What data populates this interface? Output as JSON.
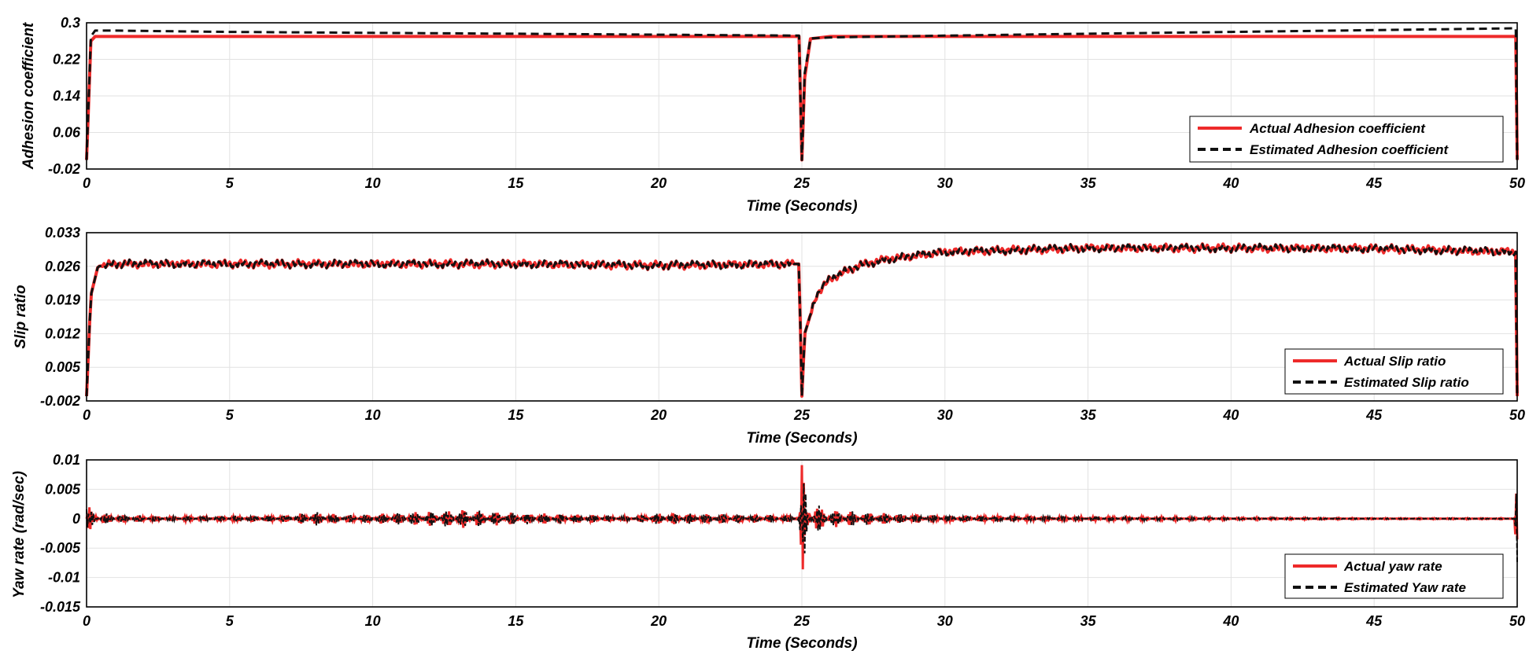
{
  "chart_data": [
    {
      "type": "line",
      "title": "",
      "xlabel": "Time (Seconds)",
      "ylabel": "Adhesion coefficient",
      "xlim": [
        0,
        50
      ],
      "ylim": [
        -0.02,
        0.3
      ],
      "xticks": [
        "0",
        "5",
        "10",
        "15",
        "20",
        "25",
        "30",
        "35",
        "40",
        "45",
        "50"
      ],
      "yticks": [
        "-0.02",
        "0.06",
        "0.14",
        "0.22",
        "0.3"
      ],
      "ytick_values": [
        -0.02,
        0.06,
        0.14,
        0.22,
        0.3
      ],
      "grid": true,
      "legend_position": "bottom-right",
      "series": [
        {
          "name": "Actual Adhesion coefficient",
          "color": "#ee2a2a",
          "style": "solid",
          "x": [
            0,
            0.15,
            0.3,
            1,
            5,
            10,
            15,
            20,
            24.9,
            25.0,
            25.1,
            25.3,
            26,
            30,
            35,
            40,
            45,
            49.95,
            50
          ],
          "y": [
            0.0,
            0.26,
            0.27,
            0.27,
            0.27,
            0.27,
            0.27,
            0.27,
            0.27,
            0.0,
            0.18,
            0.265,
            0.27,
            0.27,
            0.27,
            0.27,
            0.27,
            0.27,
            0.0
          ]
        },
        {
          "name": "Estimated Adhesion coefficient",
          "color": "#111111",
          "style": "dashed",
          "x": [
            0,
            0.15,
            0.3,
            1,
            5,
            10,
            15,
            20,
            24.9,
            25.0,
            25.1,
            25.3,
            26,
            30,
            35,
            40,
            45,
            49.95,
            50
          ],
          "y": [
            0.0,
            0.27,
            0.283,
            0.283,
            0.28,
            0.278,
            0.276,
            0.274,
            0.272,
            0.0,
            0.19,
            0.266,
            0.268,
            0.272,
            0.276,
            0.28,
            0.284,
            0.288,
            0.0
          ]
        }
      ]
    },
    {
      "type": "line",
      "title": "",
      "xlabel": "Time (Seconds)",
      "ylabel": "Slip ratio",
      "xlim": [
        0,
        50
      ],
      "ylim": [
        -0.002,
        0.033
      ],
      "xticks": [
        "0",
        "5",
        "10",
        "15",
        "20",
        "25",
        "30",
        "35",
        "40",
        "45",
        "50"
      ],
      "yticks": [
        "-0.002",
        "0.005",
        "0.012",
        "0.019",
        "0.026",
        "0.033"
      ],
      "ytick_values": [
        -0.002,
        0.005,
        0.012,
        0.019,
        0.026,
        0.033
      ],
      "grid": true,
      "legend_position": "bottom-right",
      "series": [
        {
          "name": "Actual Slip ratio",
          "color": "#ee2a2a",
          "style": "solid",
          "x": [
            0,
            0.15,
            0.4,
            1,
            5,
            10,
            15,
            20,
            24.9,
            25.0,
            25.1,
            25.5,
            26,
            27,
            28,
            30,
            35,
            40,
            45,
            49.95,
            50
          ],
          "y": [
            -0.001,
            0.02,
            0.026,
            0.0265,
            0.0265,
            0.0265,
            0.0265,
            0.0262,
            0.0265,
            -0.001,
            0.012,
            0.02,
            0.0235,
            0.0262,
            0.0275,
            0.029,
            0.0298,
            0.0298,
            0.0297,
            0.029,
            -0.001
          ]
        },
        {
          "name": "Estimated Slip ratio",
          "color": "#111111",
          "style": "dashed",
          "x": [
            0,
            0.15,
            0.4,
            1,
            5,
            10,
            15,
            20,
            24.9,
            25.0,
            25.1,
            25.5,
            26,
            27,
            28,
            30,
            35,
            40,
            45,
            49.95,
            50
          ],
          "y": [
            -0.001,
            0.02,
            0.026,
            0.0265,
            0.0265,
            0.0265,
            0.0265,
            0.0262,
            0.0265,
            -0.001,
            0.012,
            0.02,
            0.0235,
            0.0262,
            0.0275,
            0.029,
            0.0298,
            0.0298,
            0.0297,
            0.029,
            -0.001
          ]
        }
      ]
    },
    {
      "type": "line",
      "title": "",
      "xlabel": "Time (Seconds)",
      "ylabel": "Yaw rate (rad/sec)",
      "xlim": [
        0,
        50
      ],
      "ylim": [
        -0.015,
        0.01
      ],
      "xticks": [
        "0",
        "5",
        "10",
        "15",
        "20",
        "25",
        "30",
        "35",
        "40",
        "45",
        "50"
      ],
      "yticks": [
        "-0.015",
        "-0.01",
        "-0.005",
        "0",
        "0.005",
        "0.01"
      ],
      "ytick_values": [
        -0.015,
        -0.01,
        -0.005,
        0,
        0.005,
        0.01
      ],
      "grid": true,
      "legend_position": "bottom-right",
      "oscillation_envelope": {
        "x": [
          0,
          0.2,
          1,
          3,
          5,
          7,
          8,
          9,
          11,
          13,
          15,
          17,
          19,
          20,
          22,
          24.9,
          25.0,
          25.2,
          26,
          28,
          30,
          35,
          40,
          45,
          49.9,
          50
        ],
        "amplitude": [
          0.003,
          0.0012,
          0.0007,
          0.0004,
          0.0005,
          0.0006,
          0.0012,
          0.0006,
          0.001,
          0.0016,
          0.001,
          0.0008,
          0.0004,
          0.001,
          0.0008,
          0.0006,
          0.01,
          0.003,
          0.0015,
          0.0009,
          0.0006,
          0.0004,
          0.0002,
          0.0001,
          0.0001,
          0.008
        ]
      },
      "series": [
        {
          "name": "Actual yaw rate",
          "color": "#ee2a2a",
          "style": "solid",
          "baseline": 0
        },
        {
          "name": "Estimated Yaw rate",
          "color": "#111111",
          "style": "dashed",
          "baseline": 0
        }
      ]
    }
  ]
}
